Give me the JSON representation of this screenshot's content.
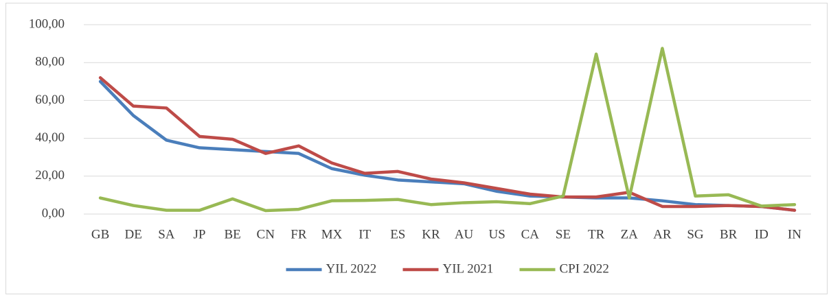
{
  "chart_data": {
    "type": "line",
    "categories": [
      "GB",
      "DE",
      "SA",
      "JP",
      "BE",
      "CN",
      "FR",
      "MX",
      "IT",
      "ES",
      "KR",
      "AU",
      "US",
      "CA",
      "SE",
      "TR",
      "ZA",
      "AR",
      "SG",
      "BR",
      "ID",
      "IN"
    ],
    "series": [
      {
        "name": "YIL 2022",
        "color": "#4a7ebb",
        "values": [
          70,
          52,
          39,
          35,
          34,
          33,
          32,
          24,
          20.5,
          18,
          17,
          16,
          12,
          9.5,
          9,
          8.5,
          8.5,
          7,
          5,
          4.5,
          4,
          2
        ]
      },
      {
        "name": "YIL 2021",
        "color": "#be4b48",
        "values": [
          72,
          57,
          56,
          41,
          39.5,
          32,
          36,
          27,
          21.5,
          22.5,
          18.5,
          16.5,
          13.5,
          10.5,
          9,
          9,
          11.5,
          4,
          4,
          4.5,
          4,
          2
        ]
      },
      {
        "name": "CPI 2022",
        "color": "#98b954",
        "values": [
          8.5,
          4.5,
          2,
          2,
          8,
          1.8,
          2.5,
          7,
          7.2,
          7.7,
          5,
          6,
          6.5,
          5.5,
          9.5,
          84.5,
          8.5,
          87.5,
          9.5,
          10.2,
          4.2,
          5
        ]
      }
    ],
    "ylim": [
      0,
      100
    ],
    "yticks": [
      {
        "value": 0,
        "label": "0,00"
      },
      {
        "value": 20,
        "label": "20,00"
      },
      {
        "value": 40,
        "label": "40,00"
      },
      {
        "value": 60,
        "label": "60,00"
      },
      {
        "value": 80,
        "label": "80,00"
      },
      {
        "value": 100,
        "label": "100,00"
      }
    ],
    "grid": true,
    "legend": "bottom"
  }
}
